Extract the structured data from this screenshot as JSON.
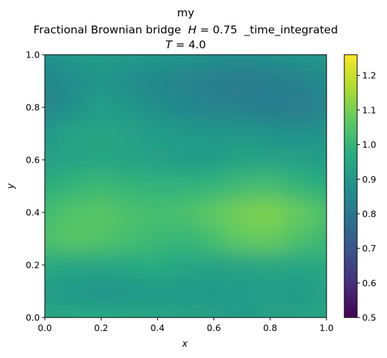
{
  "chart_data": {
    "type": "heatmap",
    "title_lines": [
      "my",
      "Fractional Brownian bridge",
      "_time_integrated"
    ],
    "title_math_H": {
      "symbol": "H",
      "eq": " = 0.75"
    },
    "title_math_T": {
      "symbol": "T",
      "eq": " = 4.0"
    },
    "xlabel": "x",
    "ylabel": "y",
    "xlim": [
      0.0,
      1.0
    ],
    "ylim": [
      0.0,
      1.0
    ],
    "xticks": [
      "0.0",
      "0.2",
      "0.4",
      "0.6",
      "0.8",
      "1.0"
    ],
    "yticks": [
      "0.0",
      "0.2",
      "0.4",
      "0.6",
      "0.8",
      "1.0"
    ],
    "colorbar": {
      "min": 0.5,
      "max": 1.26,
      "ticks": [
        "0.5",
        "0.6",
        "0.7",
        "0.8",
        "0.9",
        "1.0",
        "1.1",
        "1.2"
      ],
      "colormap": "viridis"
    },
    "grid": false,
    "field_rows_bottom_to_top": [
      [
        0.95,
        0.96,
        0.97,
        0.96,
        0.95,
        0.94,
        0.93,
        0.92,
        0.93,
        0.94,
        0.95
      ],
      [
        0.92,
        0.9,
        0.88,
        0.89,
        0.91,
        0.9,
        0.9,
        0.91,
        0.92,
        0.91,
        0.93
      ],
      [
        0.96,
        0.95,
        0.95,
        0.96,
        0.97,
        0.95,
        0.94,
        0.94,
        0.95,
        0.95,
        0.96
      ],
      [
        1.04,
        1.06,
        1.05,
        1.03,
        1.01,
        1.0,
        1.03,
        1.07,
        1.08,
        1.04,
        1.01
      ],
      [
        1.02,
        1.05,
        1.06,
        1.04,
        1.03,
        1.04,
        1.07,
        1.1,
        1.11,
        1.08,
        1.04
      ],
      [
        0.98,
        1.0,
        1.01,
        1.0,
        0.99,
        0.99,
        1.0,
        1.02,
        1.03,
        1.0,
        0.98
      ],
      [
        0.93,
        0.94,
        0.95,
        0.94,
        0.93,
        0.92,
        0.92,
        0.94,
        0.94,
        0.93,
        0.92
      ],
      [
        0.91,
        0.94,
        0.95,
        0.93,
        0.92,
        0.91,
        0.9,
        0.9,
        0.89,
        0.88,
        0.89
      ],
      [
        0.84,
        0.88,
        0.92,
        0.9,
        0.87,
        0.85,
        0.84,
        0.83,
        0.82,
        0.81,
        0.84
      ],
      [
        0.85,
        0.87,
        0.89,
        0.87,
        0.85,
        0.84,
        0.82,
        0.81,
        0.82,
        0.83,
        0.86
      ],
      [
        0.88,
        0.9,
        0.92,
        0.91,
        0.9,
        0.89,
        0.88,
        0.87,
        0.88,
        0.89,
        0.9
      ]
    ]
  }
}
